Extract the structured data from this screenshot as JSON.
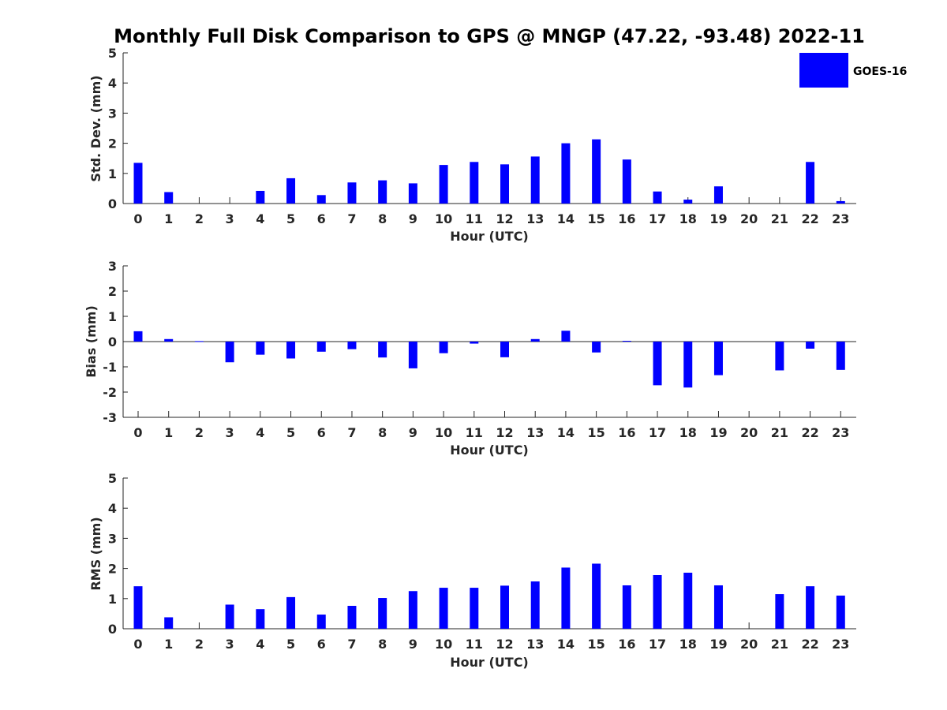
{
  "chart_data": {
    "title": "Monthly Full Disk Comparison to GPS @ MNGP (47.22, -93.48) 2022-11",
    "legend": {
      "label": "GOES-16",
      "color": "#0000ff",
      "placement": "top-right"
    },
    "categories": [
      "0",
      "1",
      "2",
      "3",
      "4",
      "5",
      "6",
      "7",
      "8",
      "9",
      "10",
      "11",
      "12",
      "13",
      "14",
      "15",
      "16",
      "17",
      "18",
      "19",
      "20",
      "21",
      "22",
      "23"
    ],
    "panels": [
      {
        "type": "bar",
        "xlabel": "Hour (UTC)",
        "ylabel": "Std. Dev. (mm)",
        "ylim": [
          0,
          5
        ],
        "yticks": [
          "0",
          "1",
          "2",
          "3",
          "4",
          "5"
        ],
        "values": [
          1.35,
          0.38,
          0,
          0,
          0.42,
          0.84,
          0.28,
          0.7,
          0.77,
          0.67,
          1.28,
          1.38,
          1.3,
          1.56,
          2.0,
          2.13,
          1.46,
          0.4,
          0.13,
          0.57,
          0,
          0,
          1.38,
          0.08
        ]
      },
      {
        "type": "bar",
        "xlabel": "Hour (UTC)",
        "ylabel": "Bias (mm)",
        "ylim": [
          -3,
          3
        ],
        "yticks": [
          "-3",
          "-2",
          "-1",
          "0",
          "1",
          "2",
          "3"
        ],
        "values": [
          0.41,
          0.1,
          0.02,
          -0.82,
          -0.52,
          -0.67,
          -0.4,
          -0.3,
          -0.63,
          -1.06,
          -0.46,
          -0.08,
          -0.62,
          0.1,
          0.43,
          -0.43,
          0.03,
          -1.73,
          -1.82,
          -1.33,
          0,
          -1.14,
          -0.28,
          -1.12
        ]
      },
      {
        "type": "bar",
        "xlabel": "Hour (UTC)",
        "ylabel": "RMS (mm)",
        "ylim": [
          0,
          5
        ],
        "yticks": [
          "0",
          "1",
          "2",
          "3",
          "4",
          "5"
        ],
        "values": [
          1.41,
          0.38,
          0,
          0.8,
          0.65,
          1.05,
          0.47,
          0.76,
          1.02,
          1.25,
          1.36,
          1.36,
          1.43,
          1.57,
          2.03,
          2.16,
          1.44,
          1.78,
          1.86,
          1.44,
          0,
          1.15,
          1.41,
          1.1
        ]
      }
    ]
  }
}
